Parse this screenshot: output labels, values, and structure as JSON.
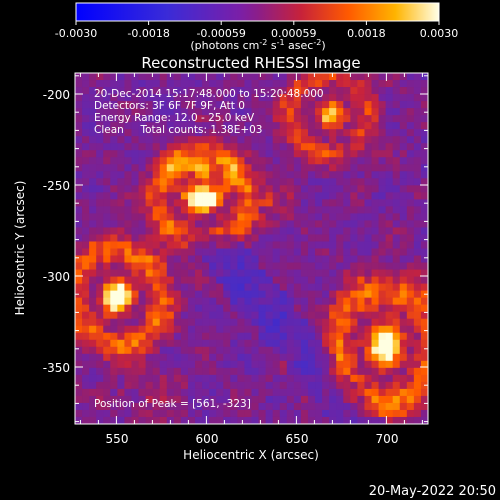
{
  "colorbar": {
    "ticks": [
      "-0.0030",
      "-0.0018",
      "-0.00059",
      "0.00059",
      "0.0018",
      "0.0030"
    ],
    "units_main": "(photons cm",
    "units_exp1": "-2",
    "units_mid": " s",
    "units_exp2": "-1",
    "units_end": " asec",
    "units_exp3": "-2",
    "units_close": ")"
  },
  "image": {
    "title": "Reconstructed RHESSI Image",
    "info": [
      "20-Dec-2014 15:17:48.000 to 15:20:48.000",
      "Detectors: 3F 6F 7F 9F, Att 0",
      "Energy Range: 12.0 - 25.0 keV",
      "Clean     Total counts: 1.38E+03"
    ],
    "peak_label": "Position of Peak = [561, -323]",
    "xlabel": "Heliocentric X (arcsec)",
    "ylabel": "Heliocentric Y (arcsec)",
    "xticks": [
      "550",
      "600",
      "650",
      "700"
    ],
    "yticks": [
      "-200",
      "-250",
      "-300",
      "-350"
    ]
  },
  "timestamp": "20-May-2022 20:50"
}
